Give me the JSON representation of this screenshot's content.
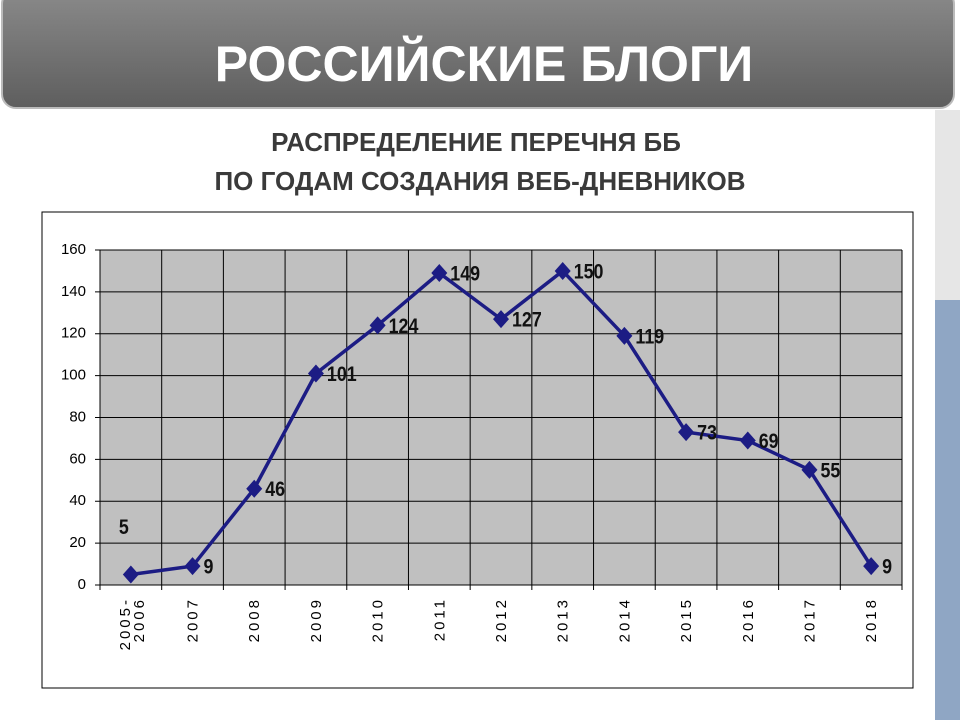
{
  "header": {
    "title": "РОССИЙСКИЕ БЛОГИ"
  },
  "chart_data": {
    "type": "line",
    "title": [
      "РАСПРЕДЕЛЕНИЕ ПЕРЕЧНЯ ББ",
      "ПО ГОДАМ СОЗДАНИЯ ВЕБ-ДНЕВНИКОВ"
    ],
    "categories": [
      "2005-\n2006",
      "2007",
      "2008",
      "2009",
      "2010",
      "2011",
      "2012",
      "2013",
      "2014",
      "2015",
      "2016",
      "2017",
      "2018"
    ],
    "values": [
      5,
      9,
      46,
      101,
      124,
      149,
      127,
      150,
      119,
      73,
      69,
      55,
      9
    ],
    "color": "#1c1c84",
    "ylim": [
      0,
      160
    ],
    "yticks": [
      0,
      20,
      40,
      60,
      80,
      100,
      120,
      140,
      160
    ],
    "grid": true
  }
}
